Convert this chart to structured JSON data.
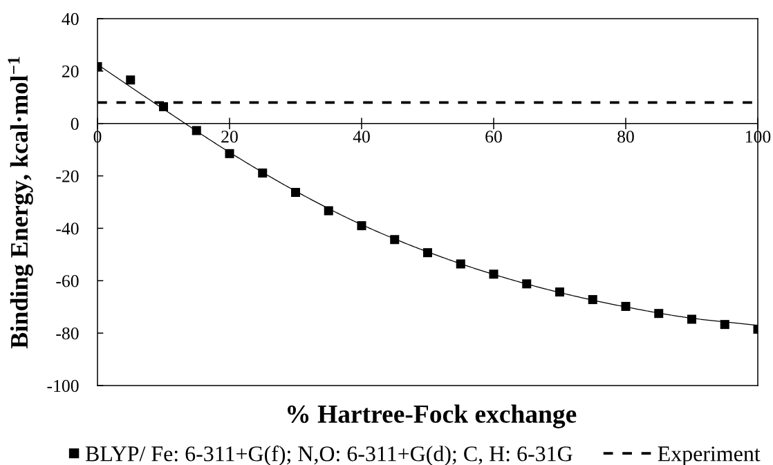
{
  "chart_data": {
    "type": "scatter",
    "xlabel": "% Hartree-Fock exchange",
    "ylabel": "Binding Energy, kcal·mol$^{−1}$",
    "xlim": [
      0,
      100
    ],
    "ylim": [
      -100,
      40
    ],
    "xticks": [
      0,
      20,
      40,
      60,
      80,
      100
    ],
    "yticks": [
      -100,
      -80,
      -60,
      -40,
      -20,
      0,
      20,
      40
    ],
    "legend": "bottom",
    "series": [
      {
        "name": "BLYP/ Fe: 6-311+G(f); N,O: 6-311+G(d); C, H: 6-31G",
        "marker": "square",
        "color": "#000000",
        "x": [
          0,
          5,
          10,
          15,
          20,
          25,
          30,
          35,
          40,
          45,
          50,
          55,
          60,
          65,
          70,
          75,
          80,
          85,
          90,
          95,
          100
        ],
        "values": [
          21.7,
          16.6,
          6.4,
          -2.7,
          -11.5,
          -18.9,
          -26.3,
          -33.3,
          -39.0,
          -44.3,
          -49.3,
          -53.6,
          -57.5,
          -61.2,
          -64.3,
          -67.2,
          -69.8,
          -72.5,
          -74.7,
          -76.7,
          -78.5
        ]
      },
      {
        "type": "line",
        "line_style": "solid",
        "color": "#000000",
        "x": [
          0,
          10,
          20,
          30,
          40,
          50,
          60,
          70,
          80,
          90,
          100
        ],
        "values": [
          22.5,
          5.5,
          -11.0,
          -25.8,
          -38.6,
          -49.0,
          -57.6,
          -64.5,
          -70.0,
          -74.3,
          -77.0
        ]
      }
    ],
    "ref_lines": [
      {
        "axis": "y",
        "value": 8,
        "label": "Experiment",
        "color": "#000000",
        "line_style": "dashed"
      }
    ]
  }
}
